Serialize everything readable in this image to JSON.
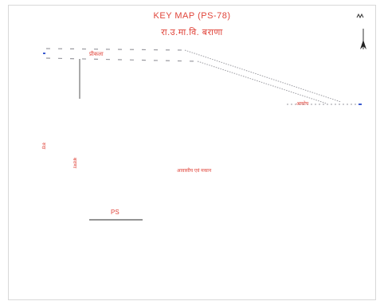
{
  "map": {
    "title": "KEY MAP (PS-78)",
    "subtitle": "रा.उ.मा.वि. बराणा",
    "labels": {
      "road_left": "प्रीकला",
      "road_right": "आसोप",
      "vertical_1": "रुदा",
      "vertical_2": "बराणा",
      "center": "आवासीय एवं मकान",
      "ps": "PS"
    },
    "north_symbol": "N",
    "colors": {
      "label": "#e0443a",
      "road": "#9a9aa0",
      "marker": "#3a5ad0",
      "line": "#555555"
    }
  }
}
